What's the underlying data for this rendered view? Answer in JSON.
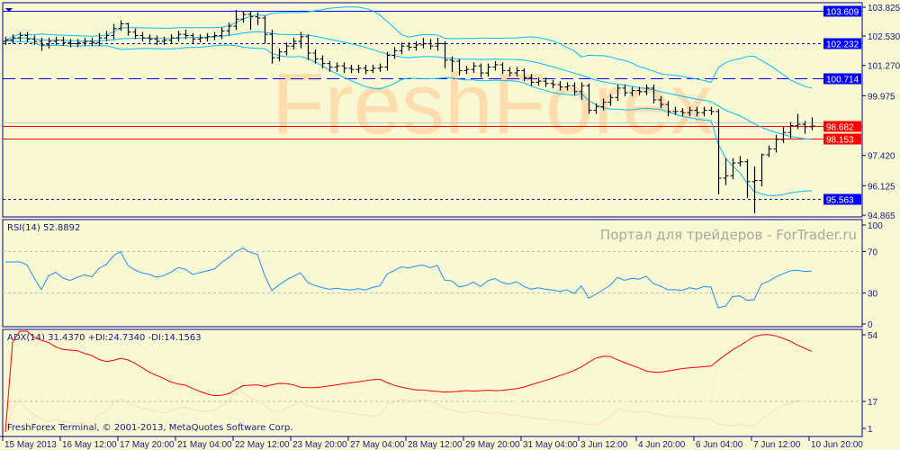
{
  "colors": {
    "background": "#F8F8D2",
    "frame": "#00008B",
    "bars": "#000000",
    "bollinger": "#00BFFF",
    "rsi": "#1E90FF",
    "adx": "#FF0000",
    "plus_di": "#FFDAB9",
    "minus_di": "#F5F0DC",
    "level_blue": "#0000FF",
    "level_red": "#FF0000",
    "watermark": "#FFD9A8"
  },
  "watermark": "FreshForex",
  "portal_text": "Портал для трейдеров - ForTrader.ru",
  "copyright": "FreshForex Terminal, © 2001-2013, MetaQuotes Software Corp.",
  "chart_data": [
    {
      "type": "ohlc",
      "price_axis_ticks": [
        "103.825",
        "102.530",
        "101.270",
        "99.975",
        "97.420",
        "96.125",
        "94.865"
      ],
      "ylim": [
        94.7,
        103.95
      ],
      "levels": [
        {
          "price": 103.609,
          "label": "103.609",
          "style": "solid",
          "color": "#0000FF"
        },
        {
          "price": 102.232,
          "label": "102.232",
          "style": "dotted",
          "color": "#0000FF"
        },
        {
          "price": 100.714,
          "label": "100.714",
          "style": "dashed",
          "color": "#0000FF"
        },
        {
          "price": 98.682,
          "label": "98.682",
          "style": "solid",
          "color": "#FF0000"
        },
        {
          "price": 98.153,
          "label": "98.153",
          "style": "solid",
          "color": "#FF0000"
        },
        {
          "price": 95.563,
          "label": "95.563",
          "style": "dotted",
          "color": "#0000FF"
        }
      ],
      "indicator": "Bollinger Bands",
      "open": [
        102.3,
        102.35,
        102.45,
        102.55,
        102.4,
        102.3,
        102.15,
        102.3,
        102.35,
        102.25,
        102.2,
        102.25,
        102.3,
        102.25,
        102.45,
        102.55,
        102.85,
        103.05,
        102.7,
        102.55,
        102.45,
        102.4,
        102.3,
        102.35,
        102.45,
        102.6,
        102.55,
        102.4,
        102.45,
        102.5,
        102.55,
        102.75,
        102.95,
        103.25,
        103.45,
        103.35,
        103.3,
        102.6,
        101.6,
        101.85,
        102.1,
        102.3,
        102.5,
        101.8,
        101.55,
        101.35,
        101.2,
        101.25,
        101.15,
        101.1,
        101.15,
        101.05,
        101.15,
        101.2,
        101.7,
        101.9,
        102.1,
        102.05,
        102.15,
        102.2,
        102.1,
        102.2,
        101.5,
        101.45,
        101.05,
        101.1,
        101.25,
        100.95,
        101.2,
        101.3,
        101.05,
        100.95,
        101.05,
        100.75,
        100.55,
        100.6,
        100.5,
        100.45,
        100.35,
        100.4,
        100.15,
        100.4,
        99.35,
        99.5,
        99.7,
        99.9,
        100.3,
        100.1,
        100.2,
        100.15,
        100.3,
        99.8,
        99.6,
        99.3,
        99.3,
        99.25,
        99.35,
        99.25,
        99.35,
        99.3,
        96.45,
        96.55,
        97.1,
        97.15,
        96.3,
        96.35,
        97.45,
        97.7,
        98.1,
        98.4,
        98.7,
        98.75,
        98.65
      ],
      "high": [
        102.5,
        102.6,
        102.7,
        102.7,
        102.55,
        102.45,
        102.45,
        102.5,
        102.5,
        102.4,
        102.4,
        102.45,
        102.45,
        102.65,
        102.75,
        103.05,
        103.2,
        103.1,
        102.85,
        102.7,
        102.6,
        102.55,
        102.5,
        102.6,
        102.75,
        102.8,
        102.65,
        102.6,
        102.65,
        102.7,
        102.9,
        103.1,
        103.65,
        103.6,
        103.6,
        103.55,
        103.4,
        102.8,
        102.0,
        102.25,
        102.45,
        102.7,
        102.6,
        101.95,
        101.7,
        101.45,
        101.4,
        101.4,
        101.3,
        101.3,
        101.3,
        101.3,
        101.35,
        101.85,
        102.05,
        102.25,
        102.25,
        102.3,
        102.45,
        102.4,
        102.45,
        102.3,
        101.65,
        101.55,
        101.25,
        101.4,
        101.35,
        101.35,
        101.45,
        101.4,
        101.2,
        101.2,
        101.15,
        100.9,
        100.75,
        100.75,
        100.65,
        100.6,
        100.55,
        100.55,
        100.55,
        100.5,
        99.65,
        99.85,
        100.05,
        100.45,
        100.45,
        100.35,
        100.35,
        100.45,
        100.45,
        99.95,
        99.75,
        99.5,
        99.45,
        99.5,
        99.5,
        99.5,
        99.5,
        99.4,
        97.3,
        97.3,
        97.4,
        97.25,
        96.95,
        97.5,
        97.85,
        98.3,
        98.65,
        98.85,
        99.2,
        98.9,
        99.05
      ],
      "low": [
        102.15,
        102.2,
        102.3,
        102.25,
        102.15,
        101.9,
        102.0,
        102.15,
        102.1,
        102.05,
        102.05,
        102.1,
        102.1,
        102.1,
        102.3,
        102.4,
        102.75,
        102.55,
        102.4,
        102.3,
        102.25,
        102.15,
        102.15,
        102.2,
        102.3,
        102.4,
        102.2,
        102.25,
        102.3,
        102.35,
        102.4,
        102.55,
        102.8,
        103.1,
        102.8,
        103.0,
        102.2,
        101.35,
        101.45,
        101.7,
        101.95,
        102.0,
        101.5,
        101.35,
        101.15,
        101.0,
        101.0,
        100.95,
        100.95,
        100.95,
        100.9,
        100.95,
        101.0,
        101.05,
        101.55,
        101.75,
        101.9,
        101.9,
        102.0,
        101.95,
        101.9,
        101.15,
        101.0,
        100.85,
        100.9,
        100.95,
        100.75,
        100.8,
        101.05,
        100.9,
        100.8,
        100.8,
        100.6,
        100.4,
        100.4,
        100.35,
        100.3,
        100.2,
        100.2,
        100.0,
        99.8,
        99.2,
        99.2,
        99.35,
        99.55,
        99.75,
        99.95,
        99.95,
        100.0,
        100.0,
        99.65,
        99.45,
        99.1,
        99.15,
        99.1,
        99.1,
        99.1,
        99.1,
        99.15,
        95.75,
        96.15,
        96.4,
        96.95,
        95.6,
        94.95,
        96.1,
        97.35,
        97.55,
        97.95,
        98.15,
        98.55,
        98.35,
        98.5
      ],
      "close": [
        102.35,
        102.45,
        102.55,
        102.4,
        102.3,
        102.15,
        102.3,
        102.35,
        102.25,
        102.2,
        102.25,
        102.3,
        102.25,
        102.45,
        102.55,
        102.85,
        103.05,
        102.7,
        102.55,
        102.45,
        102.4,
        102.3,
        102.35,
        102.45,
        102.6,
        102.55,
        102.4,
        102.45,
        102.5,
        102.55,
        102.75,
        102.95,
        103.25,
        103.45,
        103.35,
        103.3,
        102.6,
        101.6,
        101.85,
        102.1,
        102.3,
        102.5,
        101.8,
        101.55,
        101.35,
        101.2,
        101.25,
        101.15,
        101.1,
        101.15,
        101.05,
        101.15,
        101.2,
        101.7,
        101.9,
        102.1,
        102.05,
        102.15,
        102.2,
        102.1,
        102.2,
        101.5,
        101.45,
        101.05,
        101.1,
        101.25,
        100.95,
        101.2,
        101.3,
        101.05,
        100.95,
        101.05,
        100.75,
        100.55,
        100.6,
        100.5,
        100.45,
        100.35,
        100.4,
        100.15,
        100.4,
        99.35,
        99.5,
        99.7,
        99.9,
        100.3,
        100.1,
        100.2,
        100.15,
        100.3,
        99.8,
        99.6,
        99.3,
        99.3,
        99.25,
        99.35,
        99.25,
        99.35,
        99.3,
        96.45,
        96.55,
        97.1,
        97.15,
        96.3,
        96.35,
        97.45,
        97.7,
        98.1,
        98.4,
        98.7,
        98.75,
        98.65,
        98.68
      ]
    },
    {
      "type": "line",
      "title": "RSI(14) 52.8892",
      "ticks": [
        "100",
        "70",
        "30",
        "0"
      ],
      "levels": [
        70,
        30
      ],
      "ylim": [
        0,
        100
      ]
    },
    {
      "type": "line",
      "title": "ADX(14) 31.4370 +DI:24.7340 -DI:14.1563",
      "ticks": [
        "54",
        "17",
        "1"
      ],
      "levels": [
        17
      ],
      "ylim": [
        1,
        54
      ]
    }
  ],
  "time_axis": [
    "15 May 2013",
    "16 May 12:00",
    "17 May 20:00",
    "21 May 04:00",
    "22 May 12:00",
    "23 May 20:00",
    "27 May 04:00",
    "28 May 12:00",
    "29 May 20:00",
    "31 May 04:00",
    "3 Jun 12:00",
    "4 Jun 20:00",
    "6 Jun 04:00",
    "7 Jun 12:00",
    "10 Jun 20:00"
  ]
}
